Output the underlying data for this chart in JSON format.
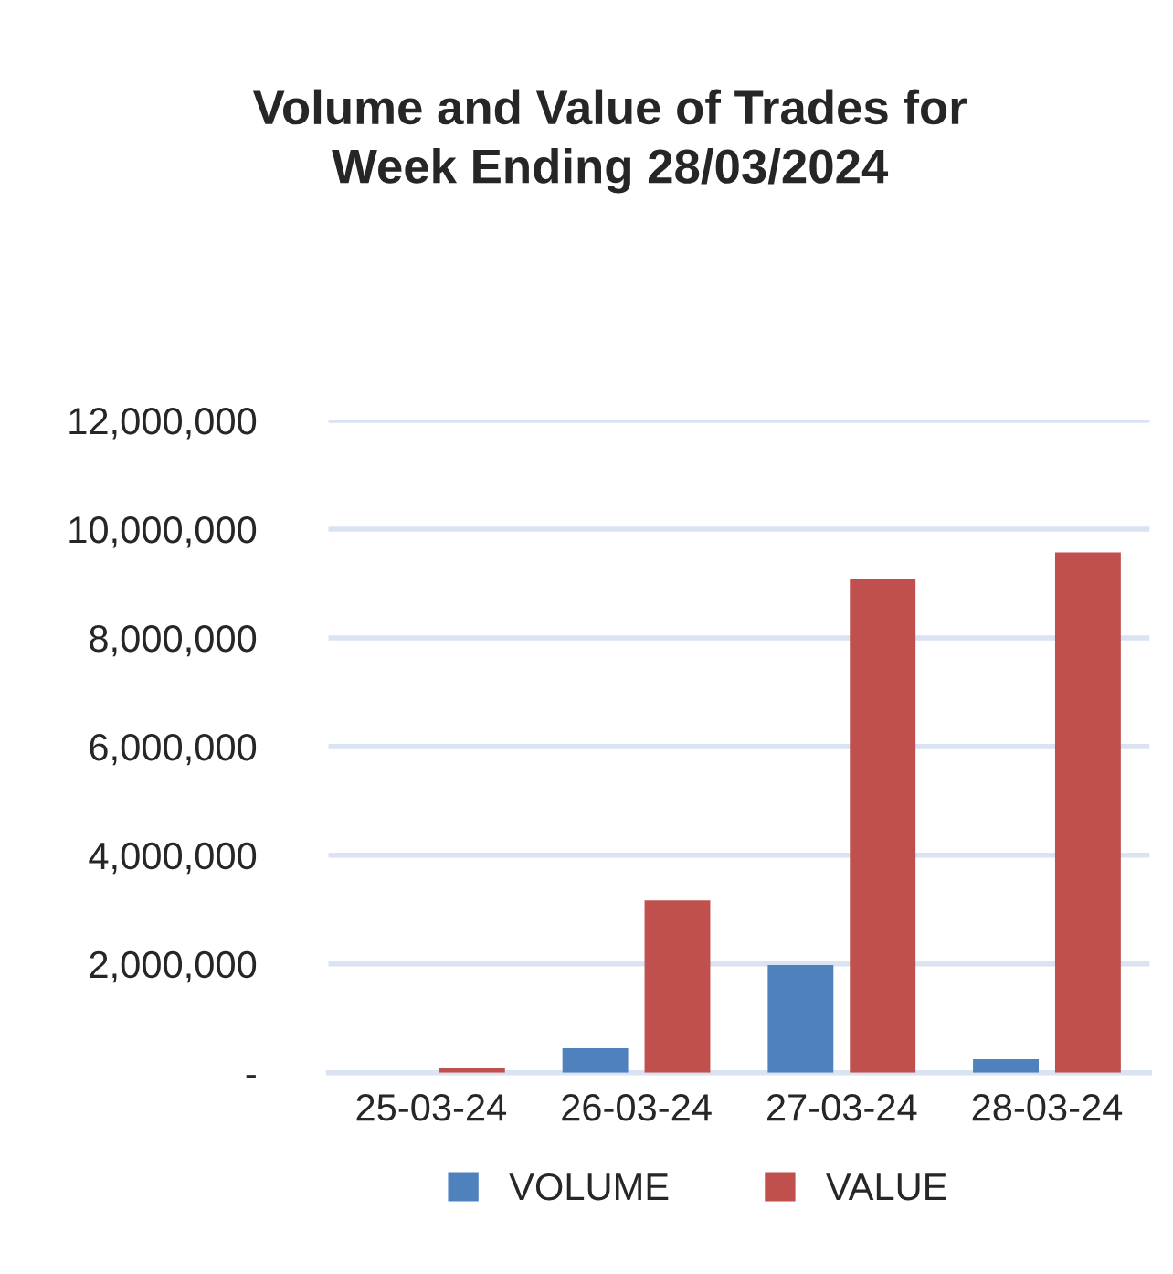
{
  "chart_data": {
    "type": "bar",
    "title": "Volume and Value of Trades for\nWeek Ending 28/03/2024",
    "categories": [
      "25-03-24",
      "26-03-24",
      "27-03-24",
      "28-03-24"
    ],
    "series": [
      {
        "name": "VOLUME",
        "color": "#4f81bd",
        "values": [
          null,
          450000,
          1980000,
          250000
        ]
      },
      {
        "name": "VALUE",
        "color": "#c0504d",
        "values": [
          80000,
          3170000,
          9090000,
          9570000
        ]
      }
    ],
    "ylim": [
      0,
      12000000
    ],
    "yticks": [
      {
        "value": 0,
        "label": "-"
      },
      {
        "value": 2000000,
        "label": "2,000,000"
      },
      {
        "value": 4000000,
        "label": "4,000,000"
      },
      {
        "value": 6000000,
        "label": "6,000,000"
      },
      {
        "value": 8000000,
        "label": "8,000,000"
      },
      {
        "value": 10000000,
        "label": "10,000,000"
      },
      {
        "value": 12000000,
        "label": "12,000,000"
      }
    ],
    "grid": "y",
    "legend": "bottom"
  }
}
